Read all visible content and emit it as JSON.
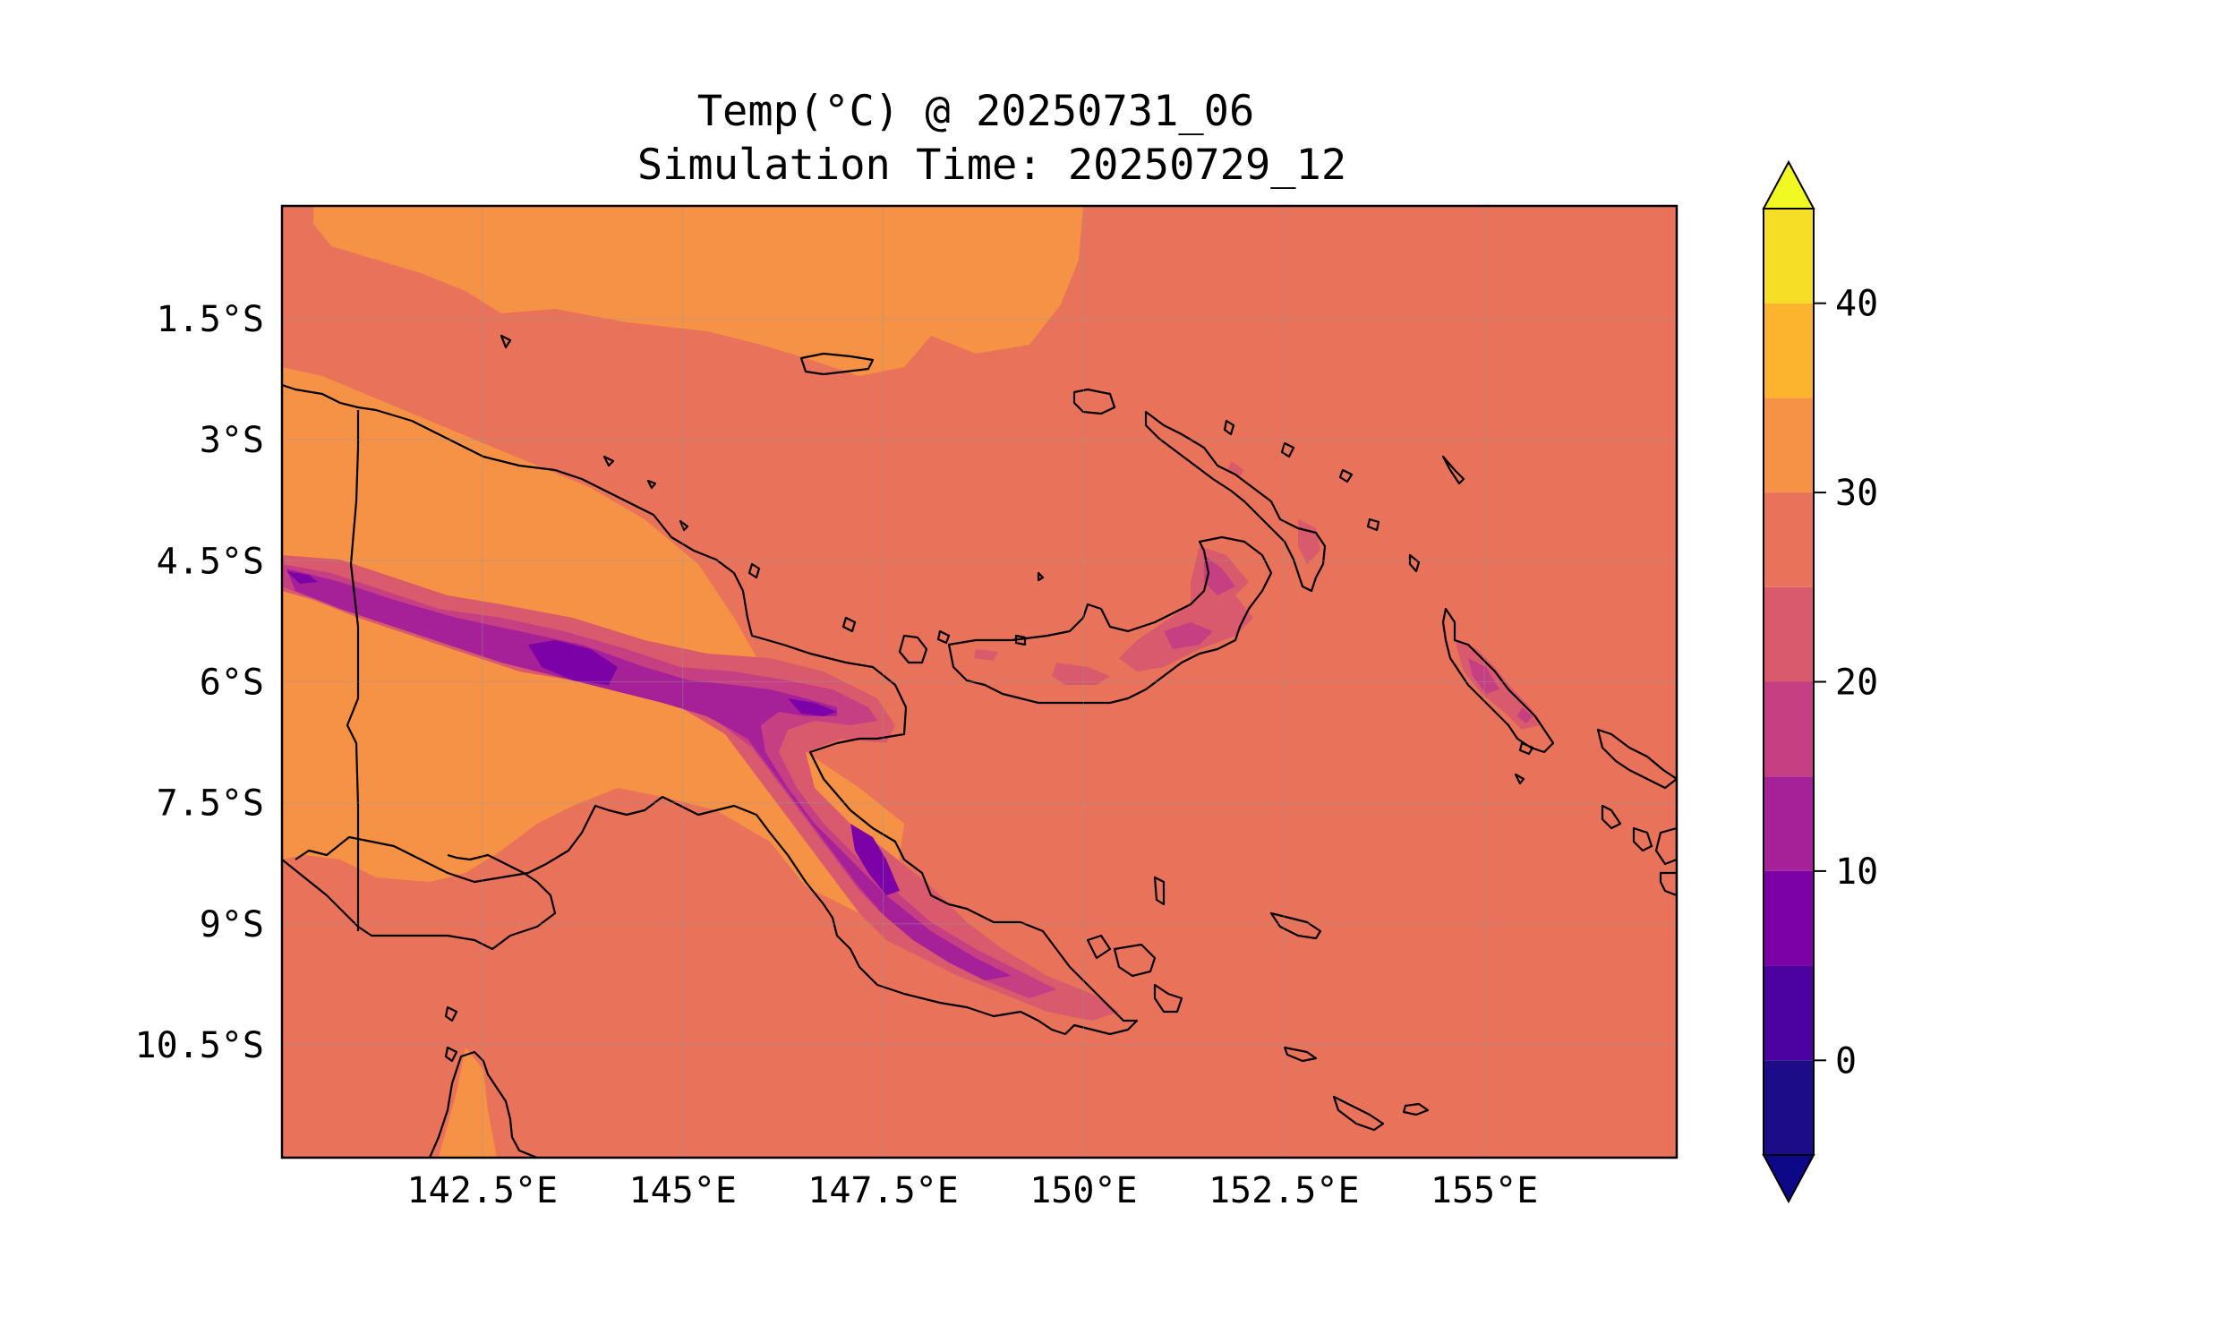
{
  "title": {
    "line1": "Temp(°C) @ 20250731_06",
    "line2": "Simulation Time: 20250729_12"
  },
  "map": {
    "background_color": "#e8735a",
    "lon_ticks": [
      {
        "lon": 142.5,
        "label": "142.5°E"
      },
      {
        "lon": 145.0,
        "label": "145°E"
      },
      {
        "lon": 147.5,
        "label": "147.5°E"
      },
      {
        "lon": 150.0,
        "label": "150°E"
      },
      {
        "lon": 152.5,
        "label": "152.5°E"
      },
      {
        "lon": 155.0,
        "label": "155°E"
      }
    ],
    "lat_ticks": [
      {
        "lat": -1.5,
        "label": "1.5°S"
      },
      {
        "lat": -3.0,
        "label": "3°S"
      },
      {
        "lat": -4.5,
        "label": "4.5°S"
      },
      {
        "lat": -6.0,
        "label": "6°S"
      },
      {
        "lat": -7.5,
        "label": "7.5°S"
      },
      {
        "lat": -9.0,
        "label": "9°S"
      },
      {
        "lat": -10.5,
        "label": "10.5°S"
      }
    ],
    "extent": {
      "lon_min": 140.0,
      "lon_max": 157.4,
      "lat_min": -11.9,
      "lat_max": -0.1
    }
  },
  "colorbar": {
    "levels": [
      -5,
      0,
      5,
      10,
      15,
      20,
      25,
      30,
      35,
      40,
      45
    ],
    "colors": [
      "#1c0c87",
      "#4b02a0",
      "#7c02a7",
      "#a62098",
      "#c73f83",
      "#d85a6c",
      "#e8735a",
      "#f69245",
      "#fcb32e",
      "#f5de25"
    ],
    "under_color": "#0d0887",
    "over_color": "#f0f921",
    "ticks": [
      {
        "value": 0,
        "label": "0"
      },
      {
        "value": 10,
        "label": "10"
      },
      {
        "value": 20,
        "label": "20"
      },
      {
        "value": 30,
        "label": "30"
      },
      {
        "value": 40,
        "label": "40"
      }
    ]
  }
}
